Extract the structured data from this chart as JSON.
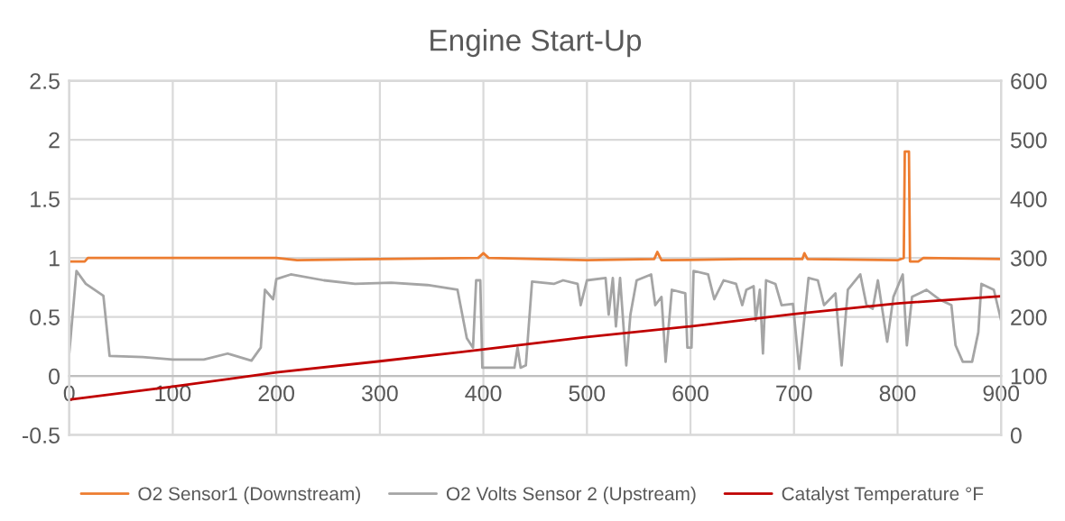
{
  "chart_data": {
    "type": "line",
    "title": "Engine Start-Up",
    "xlim": [
      0,
      900
    ],
    "xticks": [
      0,
      100,
      200,
      300,
      400,
      500,
      600,
      700,
      800,
      900
    ],
    "ylim": [
      -0.5,
      2.5
    ],
    "yticks": [
      {
        "value": -0.5,
        "label": "-0.5"
      },
      0,
      0.5,
      1,
      1.5,
      2,
      2.5
    ],
    "y2lim": [
      0,
      600
    ],
    "y2ticks": [
      0,
      100,
      200,
      300,
      400,
      500,
      600
    ],
    "grid": true,
    "legend": "bottom",
    "marker": "none",
    "line_style": "solid",
    "series": [
      {
        "name": "O2 Sensor1 (Downstream)",
        "color": "#ed7d31",
        "x": [
          0,
          15,
          18,
          100,
          200,
          220,
          300,
          395,
          400,
          405,
          500,
          565,
          568,
          572,
          650,
          708,
          710,
          713,
          800,
          806,
          807,
          811,
          812,
          820,
          825,
          900
        ],
        "values": [
          0.97,
          0.97,
          1.0,
          1.0,
          1.0,
          0.98,
          0.99,
          1.0,
          1.04,
          1.0,
          0.98,
          0.99,
          1.05,
          0.98,
          0.99,
          0.99,
          1.04,
          0.99,
          0.98,
          1.0,
          1.9,
          1.9,
          0.97,
          0.97,
          1.0,
          0.99
        ]
      },
      {
        "name": "O2 Volts Sensor 2 (Upstream)",
        "color": "#a5a5a5",
        "x": [
          0,
          7,
          16,
          33,
          39,
          71,
          100,
          130,
          153,
          176,
          185,
          189,
          197,
          200,
          214,
          246,
          276,
          311,
          346,
          375,
          384,
          390,
          393,
          397,
          399,
          430,
          433,
          436,
          441,
          447,
          468,
          477,
          491,
          494,
          500,
          518,
          521,
          525,
          528,
          532,
          538,
          542,
          548,
          562,
          566,
          572,
          576,
          582,
          595,
          597,
          601,
          603,
          617,
          623,
          632,
          644,
          650,
          654,
          661,
          663,
          667,
          670,
          673,
          682,
          688,
          699,
          705,
          714,
          723,
          729,
          740,
          746,
          752,
          764,
          770,
          776,
          781,
          790,
          796,
          805,
          809,
          814,
          828,
          840,
          852,
          856,
          863,
          872,
          878,
          881,
          893,
          900
        ],
        "values": [
          0.19,
          0.89,
          0.78,
          0.68,
          0.17,
          0.16,
          0.14,
          0.14,
          0.19,
          0.13,
          0.24,
          0.73,
          0.65,
          0.82,
          0.86,
          0.81,
          0.78,
          0.79,
          0.77,
          0.73,
          0.32,
          0.24,
          0.81,
          0.81,
          0.07,
          0.07,
          0.24,
          0.07,
          0.09,
          0.8,
          0.78,
          0.81,
          0.78,
          0.6,
          0.81,
          0.83,
          0.52,
          0.83,
          0.42,
          0.83,
          0.09,
          0.52,
          0.81,
          0.86,
          0.6,
          0.67,
          0.12,
          0.73,
          0.7,
          0.24,
          0.24,
          0.89,
          0.86,
          0.65,
          0.81,
          0.78,
          0.6,
          0.73,
          0.76,
          0.47,
          0.73,
          0.19,
          0.81,
          0.78,
          0.6,
          0.61,
          0.06,
          0.83,
          0.81,
          0.6,
          0.7,
          0.09,
          0.73,
          0.86,
          0.6,
          0.57,
          0.81,
          0.29,
          0.67,
          0.86,
          0.26,
          0.67,
          0.73,
          0.65,
          0.6,
          0.26,
          0.12,
          0.12,
          0.37,
          0.78,
          0.73,
          0.47
        ]
      },
      {
        "name": "Catalyst Temperature °F",
        "color": "#c00000",
        "axis": "y2",
        "x": [
          0,
          100,
          200,
          300,
          400,
          500,
          600,
          700,
          800,
          900
        ],
        "values": [
          60,
          82,
          106,
          125,
          145,
          166,
          184,
          205,
          223,
          235
        ]
      }
    ]
  }
}
